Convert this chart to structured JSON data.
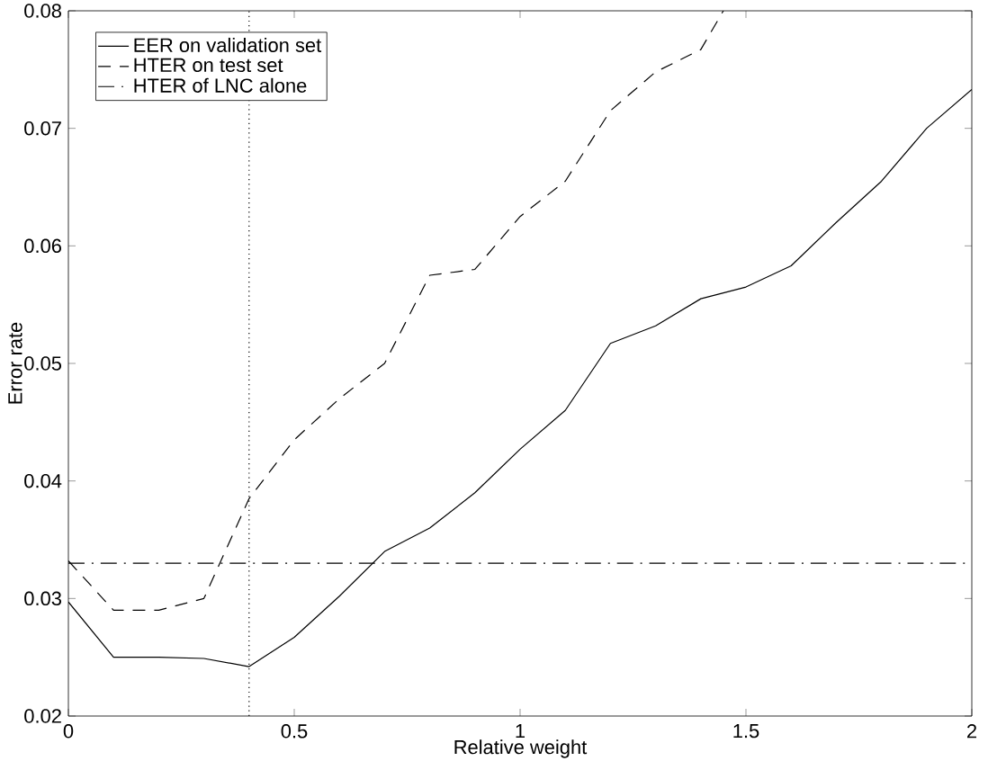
{
  "chart_data": {
    "type": "line",
    "xlabel": "Relative weight",
    "ylabel": "Error rate",
    "xlim": [
      0,
      2
    ],
    "ylim": [
      0.02,
      0.08
    ],
    "xticks": [
      0,
      0.5,
      1,
      1.5,
      2
    ],
    "yticks": [
      0.02,
      0.03,
      0.04,
      0.05,
      0.06,
      0.07,
      0.08
    ],
    "legend": "top left",
    "grid": false,
    "marker": "none",
    "series": [
      {
        "name": "EER on validation set",
        "color": "#000000",
        "line_style": "solid",
        "x": [
          0,
          0.1,
          0.2,
          0.3,
          0.4,
          0.5,
          0.6,
          0.7,
          0.8,
          0.9,
          1.0,
          1.1,
          1.2,
          1.3,
          1.4,
          1.5,
          1.6,
          1.7,
          1.8,
          1.9,
          2.0
        ],
        "values": [
          0.0297,
          0.025,
          0.025,
          0.0249,
          0.0242,
          0.0267,
          0.0302,
          0.034,
          0.036,
          0.039,
          0.0427,
          0.046,
          0.0517,
          0.0532,
          0.0555,
          0.0565,
          0.0583,
          0.062,
          0.0655,
          0.07,
          0.0733
        ]
      },
      {
        "name": "HTER on test set",
        "color": "#000000",
        "line_style": "dashed",
        "x": [
          0,
          0.1,
          0.2,
          0.3,
          0.4,
          0.5,
          0.6,
          0.7,
          0.8,
          0.9,
          1.0,
          1.1,
          1.2,
          1.3,
          1.4,
          1.45
        ],
        "values": [
          0.0332,
          0.029,
          0.029,
          0.03,
          0.0385,
          0.0435,
          0.047,
          0.05,
          0.0575,
          0.058,
          0.0625,
          0.0655,
          0.0715,
          0.0748,
          0.0767,
          0.08
        ]
      },
      {
        "name": "HTER of LNC alone",
        "color": "#000000",
        "line_style": "dashdot",
        "x": [
          0,
          2
        ],
        "values": [
          0.033,
          0.033
        ]
      }
    ],
    "ref_lines": [
      {
        "axis": "x",
        "value": 0.4,
        "line_style": "dotted",
        "color": "#000000"
      }
    ]
  }
}
